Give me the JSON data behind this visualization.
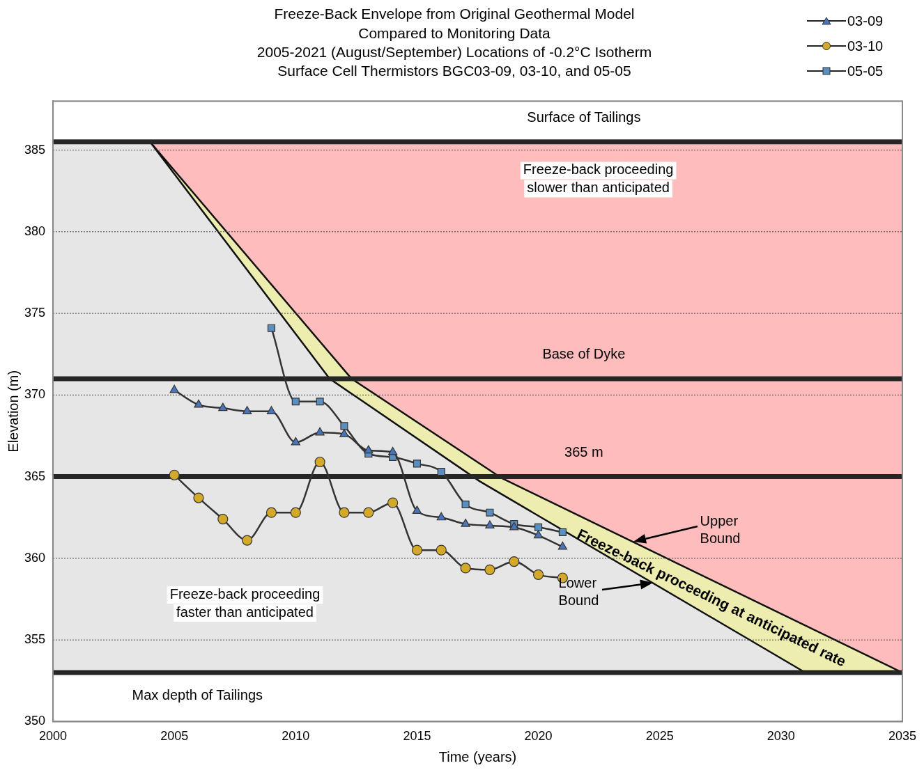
{
  "chart_data": {
    "type": "line",
    "title": "Freeze-Back Envelope from Original Geothermal Model\nCompared to Monitoring Data\n2005-2021 (August/September) Locations of -0.2°C Isotherm\nSurface Cell Thermistors BGC03-09, 03-10, and 05-05",
    "xlabel": "Time (years)",
    "ylabel": "Elevation (m)",
    "xlim": [
      2000,
      2035
    ],
    "xticks": [
      2000,
      2005,
      2010,
      2015,
      2020,
      2025,
      2030,
      2035
    ],
    "ylim": [
      350,
      388
    ],
    "yticks": [
      350,
      355,
      360,
      365,
      370,
      375,
      380,
      385
    ],
    "grid": "y",
    "legend": "top right",
    "series": [
      {
        "type": "area",
        "color": "#e6e6e6",
        "x": [
          2000,
          2004,
          2011.4,
          2017.6,
          2031
        ],
        "values": [
          385.5,
          385.5,
          371,
          364.7,
          353
        ]
      },
      {
        "type": "area",
        "color": "#ededb0",
        "x": [
          2004,
          2012.3,
          2018.5,
          2035
        ],
        "values": [
          385.5,
          371,
          364.9,
          353
        ]
      },
      {
        "name": "03-09",
        "color": "#4a74b8",
        "marker": "triangle",
        "x": [
          2005,
          2006,
          2007,
          2008,
          2009,
          2010,
          2011,
          2012,
          2013,
          2014,
          2015,
          2016,
          2017,
          2018,
          2019,
          2020,
          2021
        ],
        "values": [
          370.3,
          369.4,
          369.2,
          369.0,
          369.0,
          367.1,
          367.7,
          367.6,
          366.6,
          366.5,
          362.9,
          362.5,
          362.1,
          362.0,
          361.9,
          361.4,
          360.7
        ]
      },
      {
        "name": "03-10",
        "color": "#d4a829",
        "marker": "circle",
        "x": [
          2005,
          2006,
          2007,
          2008,
          2009,
          2010,
          2011,
          2012,
          2013,
          2014,
          2015,
          2016,
          2017,
          2018,
          2019,
          2020,
          2021
        ],
        "values": [
          365.1,
          363.7,
          362.4,
          361.1,
          362.8,
          362.8,
          365.9,
          362.8,
          362.8,
          363.4,
          360.5,
          360.5,
          359.4,
          359.3,
          359.8,
          359.0,
          358.8
        ]
      },
      {
        "name": "05-05",
        "color": "#5b8fc0",
        "marker": "square",
        "x": [
          2009,
          2010,
          2011,
          2012,
          2013,
          2014,
          2015,
          2016,
          2017,
          2018,
          2019,
          2020,
          2021
        ],
        "values": [
          374.1,
          369.6,
          369.6,
          368.1,
          366.4,
          366.2,
          365.8,
          365.3,
          363.3,
          362.8,
          362.1,
          361.9,
          361.6
        ]
      }
    ],
    "bands": [
      {
        "axis": "y",
        "from": 353,
        "to": 385.5,
        "color": "#ffbcbc"
      }
    ],
    "ref_lines": [
      {
        "axis": "y",
        "value": 385.5,
        "label": "Surface of Tailings",
        "color": "#262626"
      },
      {
        "axis": "y",
        "value": 371,
        "label": "Base of Dyke",
        "color": "#262626"
      },
      {
        "axis": "y",
        "value": 365,
        "label": "365 m",
        "color": "#262626"
      },
      {
        "axis": "y",
        "value": 353,
        "label": "Max depth of Tailings",
        "color": "#262626"
      }
    ],
    "annotations": [
      "Freeze-back proceeding\nfaster than anticipated",
      "Freeze-back proceeding\nslower than anticipated",
      "Upper\nBound",
      "Lower\nBound",
      "Freeze-back proceeding at anticipated rate"
    ]
  }
}
